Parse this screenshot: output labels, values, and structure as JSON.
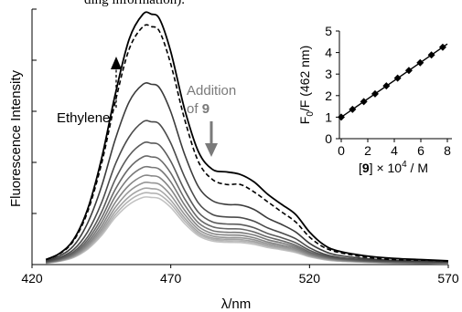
{
  "header_fragment": "ding information).",
  "chart_data": [
    {
      "type": "line",
      "xlabel": "λ/nm",
      "ylabel": "Fluorescence Intensity",
      "xlim": [
        420,
        570
      ],
      "ylim": [
        0,
        1.02
      ],
      "x_ticks": [
        "420",
        "470",
        "520",
        "570"
      ],
      "y_tick_labels_shown": false,
      "annotations": {
        "ethylene_label": "Ethylene",
        "addition_line1": "Addition",
        "addition_line2_prefix": "of ",
        "addition_line2_bold": "9"
      },
      "colors": {
        "ethylene": "#000000",
        "titration_darkest": "#3c3c3c",
        "titration_lightest": "#c2c2c2",
        "addition_text": "#7a7a7a"
      },
      "x": [
        418,
        425,
        430,
        435,
        440,
        445,
        450,
        455,
        460,
        463,
        466,
        470,
        475,
        480,
        485,
        490,
        495,
        500,
        505,
        510,
        515,
        520,
        525,
        530,
        540,
        550,
        560,
        570
      ],
      "series": [
        {
          "name": "Ethylene",
          "style": "solid",
          "values": [
            0.005,
            0.02,
            0.045,
            0.1,
            0.22,
            0.42,
            0.68,
            0.9,
            1.0,
            1.0,
            0.98,
            0.85,
            0.62,
            0.45,
            0.38,
            0.37,
            0.36,
            0.33,
            0.28,
            0.24,
            0.2,
            0.13,
            0.08,
            0.055,
            0.035,
            0.025,
            0.02,
            0.015
          ]
        },
        {
          "style": "dashed",
          "values": [
            0.005,
            0.02,
            0.043,
            0.095,
            0.21,
            0.4,
            0.65,
            0.86,
            0.95,
            0.95,
            0.93,
            0.8,
            0.58,
            0.41,
            0.34,
            0.32,
            0.32,
            0.29,
            0.25,
            0.21,
            0.17,
            0.11,
            0.07,
            0.05,
            0.03,
            0.02,
            0.018,
            0.014
          ]
        },
        {
          "style": "solid",
          "values": [
            0.004,
            0.015,
            0.035,
            0.075,
            0.165,
            0.31,
            0.5,
            0.65,
            0.72,
            0.72,
            0.705,
            0.61,
            0.44,
            0.31,
            0.255,
            0.24,
            0.238,
            0.22,
            0.185,
            0.16,
            0.13,
            0.085,
            0.055,
            0.038,
            0.024,
            0.017,
            0.014,
            0.011
          ]
        },
        {
          "style": "solid",
          "values": [
            0.004,
            0.012,
            0.028,
            0.06,
            0.13,
            0.245,
            0.4,
            0.51,
            0.57,
            0.57,
            0.56,
            0.485,
            0.35,
            0.245,
            0.2,
            0.19,
            0.188,
            0.173,
            0.146,
            0.126,
            0.103,
            0.067,
            0.043,
            0.03,
            0.019,
            0.014,
            0.011,
            0.009
          ]
        },
        {
          "style": "solid",
          "values": [
            0.003,
            0.01,
            0.024,
            0.051,
            0.11,
            0.208,
            0.34,
            0.435,
            0.485,
            0.485,
            0.476,
            0.412,
            0.297,
            0.208,
            0.17,
            0.162,
            0.16,
            0.147,
            0.124,
            0.107,
            0.087,
            0.057,
            0.037,
            0.026,
            0.016,
            0.012,
            0.009,
            0.008
          ]
        },
        {
          "style": "solid",
          "values": [
            0.003,
            0.009,
            0.021,
            0.045,
            0.098,
            0.185,
            0.3,
            0.385,
            0.43,
            0.43,
            0.42,
            0.365,
            0.263,
            0.184,
            0.151,
            0.143,
            0.142,
            0.13,
            0.11,
            0.095,
            0.077,
            0.05,
            0.033,
            0.023,
            0.014,
            0.01,
            0.008,
            0.007
          ]
        },
        {
          "style": "solid",
          "values": [
            0.003,
            0.008,
            0.019,
            0.041,
            0.088,
            0.167,
            0.272,
            0.348,
            0.388,
            0.388,
            0.38,
            0.33,
            0.238,
            0.166,
            0.136,
            0.129,
            0.128,
            0.118,
            0.099,
            0.086,
            0.07,
            0.045,
            0.03,
            0.021,
            0.013,
            0.009,
            0.007,
            0.006
          ]
        },
        {
          "style": "solid",
          "values": [
            0.002,
            0.007,
            0.017,
            0.037,
            0.08,
            0.152,
            0.248,
            0.317,
            0.354,
            0.354,
            0.347,
            0.301,
            0.217,
            0.152,
            0.124,
            0.118,
            0.117,
            0.107,
            0.09,
            0.078,
            0.064,
            0.041,
            0.027,
            0.019,
            0.012,
            0.008,
            0.007,
            0.006
          ]
        },
        {
          "style": "solid",
          "values": [
            0.002,
            0.007,
            0.016,
            0.034,
            0.074,
            0.14,
            0.228,
            0.292,
            0.326,
            0.326,
            0.32,
            0.277,
            0.2,
            0.14,
            0.114,
            0.108,
            0.107,
            0.099,
            0.083,
            0.072,
            0.059,
            0.038,
            0.025,
            0.017,
            0.011,
            0.008,
            0.006,
            0.005
          ]
        },
        {
          "style": "solid",
          "values": [
            0.002,
            0.006,
            0.015,
            0.032,
            0.069,
            0.13,
            0.212,
            0.271,
            0.303,
            0.303,
            0.297,
            0.257,
            0.186,
            0.13,
            0.106,
            0.101,
            0.1,
            0.092,
            0.077,
            0.067,
            0.055,
            0.035,
            0.023,
            0.016,
            0.01,
            0.007,
            0.006,
            0.005
          ]
        },
        {
          "style": "solid",
          "values": [
            0.002,
            0.006,
            0.014,
            0.03,
            0.065,
            0.122,
            0.199,
            0.255,
            0.285,
            0.285,
            0.279,
            0.242,
            0.175,
            0.122,
            0.1,
            0.095,
            0.094,
            0.087,
            0.073,
            0.063,
            0.051,
            0.033,
            0.022,
            0.015,
            0.01,
            0.007,
            0.005,
            0.004
          ]
        },
        {
          "style": "solid",
          "values": [
            0.002,
            0.005,
            0.013,
            0.028,
            0.061,
            0.115,
            0.188,
            0.24,
            0.268,
            0.268,
            0.263,
            0.228,
            0.164,
            0.115,
            0.094,
            0.089,
            0.088,
            0.081,
            0.068,
            0.059,
            0.048,
            0.031,
            0.02,
            0.014,
            0.009,
            0.006,
            0.005,
            0.004
          ]
        }
      ]
    },
    {
      "type": "scatter",
      "xlabel_parts": {
        "bracket_open": "[",
        "bold": "9",
        "rest": "] × 10",
        "sup": "4",
        "unit": " / M"
      },
      "ylabel_parts": {
        "F": "F",
        "sub": "0",
        "rest": "/F (462 nm)"
      },
      "xlim": [
        0,
        8
      ],
      "ylim": [
        0,
        5
      ],
      "x_ticks": [
        "0",
        "2",
        "4",
        "6",
        "8"
      ],
      "y_ticks": [
        "0",
        "1",
        "2",
        "3",
        "4",
        "5"
      ],
      "grid": false,
      "fit_line": {
        "x": [
          0,
          8
        ],
        "y": [
          1.0,
          4.4
        ]
      },
      "x": [
        0,
        0.85,
        1.7,
        2.55,
        3.4,
        4.25,
        5.1,
        5.95,
        6.8,
        7.65
      ],
      "values": [
        1.0,
        1.36,
        1.72,
        2.08,
        2.45,
        2.81,
        3.17,
        3.53,
        3.89,
        4.25
      ]
    }
  ]
}
